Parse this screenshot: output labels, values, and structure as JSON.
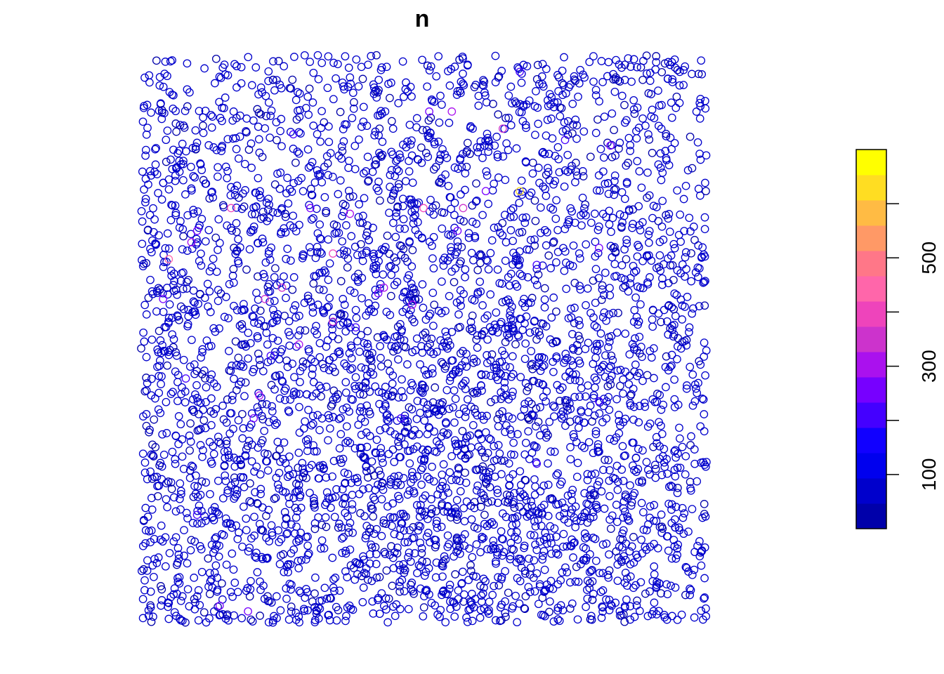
{
  "chart_data": {
    "type": "scatter",
    "title": "n",
    "subtitle": "",
    "xlabel": "",
    "ylabel": "",
    "grid": false,
    "legend": {
      "type": "colorbar",
      "placement": "right",
      "range": [
        0,
        700
      ],
      "ticks": [
        100,
        300,
        500
      ],
      "tick_labels": [
        "100",
        "300",
        "500"
      ],
      "minor_ticks": [
        100,
        200,
        300,
        400,
        500,
        600
      ],
      "colors": [
        "#0000AA",
        "#0000CC",
        "#0000EE",
        "#1100FF",
        "#4400FF",
        "#7700FF",
        "#AA11EE",
        "#CC33CC",
        "#EE44BB",
        "#FF66AA",
        "#FF7788",
        "#FF9966",
        "#FFBB44",
        "#FFDD22",
        "#FFFF00"
      ]
    },
    "point_style": {
      "shape": "open-circle",
      "base_color": "#0000CC"
    },
    "highlights": [
      {
        "x": 0.67,
        "y": 0.76,
        "value": 650
      },
      {
        "x": 0.05,
        "y": 0.64,
        "value": 420
      },
      {
        "x": 0.16,
        "y": 0.73,
        "value": 400
      },
      {
        "x": 0.34,
        "y": 0.65,
        "value": 380
      },
      {
        "x": 0.5,
        "y": 0.73,
        "value": 390
      },
      {
        "x": 0.57,
        "y": 0.73,
        "value": 350
      },
      {
        "x": 0.64,
        "y": 0.87,
        "value": 360
      },
      {
        "x": 0.25,
        "y": 0.59,
        "value": 370
      },
      {
        "x": 0.34,
        "y": 0.53,
        "value": 330
      },
      {
        "x": 0.21,
        "y": 0.4,
        "value": 310
      },
      {
        "x": 0.22,
        "y": 0.57,
        "value": 340
      },
      {
        "x": 0.09,
        "y": 0.67,
        "value": 320
      },
      {
        "x": 0.37,
        "y": 0.72,
        "value": 300
      },
      {
        "x": 0.55,
        "y": 0.9,
        "value": 290
      },
      {
        "x": 0.28,
        "y": 0.49,
        "value": 280
      },
      {
        "x": 0.48,
        "y": 0.56,
        "value": 300
      },
      {
        "x": 0.51,
        "y": 0.9,
        "value": 260
      },
      {
        "x": 0.81,
        "y": 0.66,
        "value": 270
      },
      {
        "x": 0.1,
        "y": 0.69,
        "value": 260
      },
      {
        "x": 0.43,
        "y": 0.59,
        "value": 280
      },
      {
        "x": 0.04,
        "y": 0.57,
        "value": 250
      },
      {
        "x": 0.2,
        "y": 0.36,
        "value": 240
      },
      {
        "x": 0.14,
        "y": 0.03,
        "value": 250
      },
      {
        "x": 0.19,
        "y": 0.02,
        "value": 240
      },
      {
        "x": 0.08,
        "y": 0.43,
        "value": 230
      },
      {
        "x": 0.81,
        "y": 0.39,
        "value": 220
      },
      {
        "x": 0.56,
        "y": 0.69,
        "value": 240
      },
      {
        "x": 0.7,
        "y": 0.63,
        "value": 230
      },
      {
        "x": 0.3,
        "y": 0.73,
        "value": 270
      },
      {
        "x": 0.42,
        "y": 0.58,
        "value": 260
      },
      {
        "x": 0.27,
        "y": 0.86,
        "value": 220
      },
      {
        "x": 0.75,
        "y": 0.85,
        "value": 230
      },
      {
        "x": 0.83,
        "y": 0.84,
        "value": 240
      },
      {
        "x": 0.61,
        "y": 0.76,
        "value": 260
      },
      {
        "x": 0.38,
        "y": 0.52,
        "value": 230
      },
      {
        "x": 0.46,
        "y": 0.36,
        "value": 210
      },
      {
        "x": 0.7,
        "y": 0.28,
        "value": 200
      },
      {
        "x": 0.1,
        "y": 0.19,
        "value": 210
      },
      {
        "x": 0.23,
        "y": 0.47,
        "value": 220
      },
      {
        "x": 0.67,
        "y": 0.97,
        "value": 210
      }
    ]
  }
}
